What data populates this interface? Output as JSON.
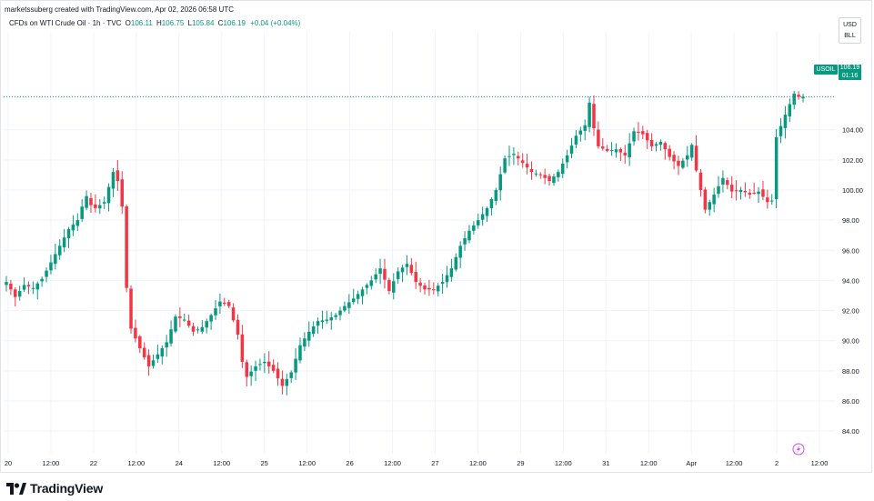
{
  "header": {
    "attribution": "marketssuberg created with TradingView.com, Apr 02, 2026 06:58 UTC",
    "instrument": "CFDs on WTI Crude Oil · 1h · TVC",
    "ohlc": {
      "o_label": "O",
      "o_value": "106.11",
      "h_label": "H",
      "h_value": "106.75",
      "l_label": "L",
      "l_value": "105.84",
      "c_label": "C",
      "c_value": "106.19",
      "change": "+0.04 (+0.04%)"
    }
  },
  "currency": {
    "code": "USD",
    "unit": "BLL"
  },
  "last_price": {
    "symbol": "USOIL",
    "value": "106.19",
    "countdown": "01:16"
  },
  "footer": {
    "brand": "TradingView"
  },
  "icons": {
    "logo": "tradingview-logo-icon",
    "flash": "flash-icon"
  },
  "colors": {
    "up": "#089981",
    "down": "#f23645",
    "grid": "#f0f3fa",
    "price_line": "#089981"
  },
  "chart_data": {
    "type": "candlestick",
    "title": "CFDs on WTI Crude Oil · 1h · TVC",
    "ylim": [
      82.5,
      110.5
    ],
    "y_ticks": [
      84,
      86,
      88,
      90,
      92,
      94,
      96,
      98,
      100,
      102,
      104
    ],
    "x_ticks": [
      "20",
      "12:00",
      "22",
      "12:00",
      "24",
      "12:00",
      "25",
      "12:00",
      "26",
      "12:00",
      "27",
      "12:00",
      "29",
      "12:00",
      "31",
      "12:00",
      "Apr",
      "12:00",
      "2",
      "12:00"
    ],
    "last_close": 106.19,
    "close_path": [
      [
        0,
        93.9
      ],
      [
        2,
        92.9
      ],
      [
        4,
        93.7
      ],
      [
        6,
        93.5
      ],
      [
        8,
        94.1
      ],
      [
        10,
        95.2
      ],
      [
        12,
        96.3
      ],
      [
        14,
        97.4
      ],
      [
        16,
        98.0
      ],
      [
        17,
        98.9
      ],
      [
        18,
        99.6
      ],
      [
        19,
        99.0
      ],
      [
        20,
        98.8
      ],
      [
        22,
        99.2
      ],
      [
        24,
        101.2
      ],
      [
        25,
        100.6
      ],
      [
        26,
        98.9
      ],
      [
        27,
        93.5
      ],
      [
        28,
        90.8
      ],
      [
        30,
        89.5
      ],
      [
        32,
        88.3
      ],
      [
        34,
        89.1
      ],
      [
        36,
        89.9
      ],
      [
        38,
        91.6
      ],
      [
        40,
        91.4
      ],
      [
        42,
        90.6
      ],
      [
        44,
        90.9
      ],
      [
        46,
        91.7
      ],
      [
        48,
        92.6
      ],
      [
        50,
        92.3
      ],
      [
        52,
        90.4
      ],
      [
        53,
        88.6
      ],
      [
        54,
        87.6
      ],
      [
        56,
        88.3
      ],
      [
        58,
        88.6
      ],
      [
        60,
        88.0
      ],
      [
        62,
        87.0
      ],
      [
        64,
        87.9
      ],
      [
        66,
        89.7
      ],
      [
        68,
        90.6
      ],
      [
        70,
        91.3
      ],
      [
        72,
        91.4
      ],
      [
        74,
        91.7
      ],
      [
        76,
        92.3
      ],
      [
        78,
        92.8
      ],
      [
        80,
        93.4
      ],
      [
        82,
        94.0
      ],
      [
        84,
        94.8
      ],
      [
        86,
        93.3
      ],
      [
        88,
        94.6
      ],
      [
        90,
        95.1
      ],
      [
        92,
        93.9
      ],
      [
        94,
        93.4
      ],
      [
        96,
        93.4
      ],
      [
        98,
        93.9
      ],
      [
        100,
        94.8
      ],
      [
        102,
        96.3
      ],
      [
        104,
        97.3
      ],
      [
        106,
        98.0
      ],
      [
        108,
        98.8
      ],
      [
        110,
        100.0
      ],
      [
        112,
        102.1
      ],
      [
        114,
        102.4
      ],
      [
        116,
        101.8
      ],
      [
        118,
        101.2
      ],
      [
        120,
        101.0
      ],
      [
        122,
        100.6
      ],
      [
        124,
        101.2
      ],
      [
        126,
        102.3
      ],
      [
        128,
        103.6
      ],
      [
        130,
        104.3
      ],
      [
        131,
        105.8
      ],
      [
        132,
        104.1
      ],
      [
        133,
        102.9
      ],
      [
        135,
        102.6
      ],
      [
        137,
        102.7
      ],
      [
        139,
        102.3
      ],
      [
        141,
        103.9
      ],
      [
        143,
        103.7
      ],
      [
        145,
        102.9
      ],
      [
        147,
        103.2
      ],
      [
        149,
        102.2
      ],
      [
        151,
        101.6
      ],
      [
        153,
        102.3
      ],
      [
        154,
        103.0
      ],
      [
        155,
        101.3
      ],
      [
        157,
        98.7
      ],
      [
        159,
        99.7
      ],
      [
        161,
        100.8
      ],
      [
        163,
        99.9
      ],
      [
        165,
        100.0
      ],
      [
        167,
        99.7
      ],
      [
        169,
        99.9
      ],
      [
        171,
        99.2
      ],
      [
        172,
        99.3
      ],
      [
        173,
        103.5
      ],
      [
        175,
        105.0
      ],
      [
        177,
        106.4
      ],
      [
        178,
        106.19
      ]
    ]
  }
}
